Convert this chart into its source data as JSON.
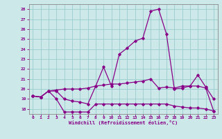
{
  "xlabel": "Windchill (Refroidissement éolien,°C)",
  "background_color": "#cce8e8",
  "line_color": "#880088",
  "grid_color": "#99cccc",
  "xlim": [
    -0.5,
    23.5
  ],
  "ylim": [
    17.5,
    28.5
  ],
  "yticks": [
    18,
    19,
    20,
    21,
    22,
    23,
    24,
    25,
    26,
    27,
    28
  ],
  "xticks": [
    0,
    1,
    2,
    3,
    4,
    5,
    6,
    7,
    8,
    9,
    10,
    11,
    12,
    13,
    14,
    15,
    16,
    17,
    18,
    19,
    20,
    21,
    22,
    23
  ],
  "curve1": [
    19.3,
    19.2,
    19.8,
    19.8,
    19.0,
    18.8,
    18.7,
    18.5,
    20.3,
    22.2,
    20.3,
    23.5,
    24.1,
    24.8,
    25.1,
    27.8,
    28.0,
    25.5,
    20.0,
    20.1,
    20.3,
    21.4,
    20.2,
    19.0
  ],
  "curve2": [
    19.3,
    19.2,
    19.8,
    19.0,
    17.7,
    17.7,
    17.7,
    17.7,
    18.5,
    18.5,
    18.5,
    18.5,
    18.5,
    18.5,
    18.5,
    18.5,
    18.5,
    18.5,
    18.3,
    18.2,
    18.1,
    18.1,
    18.0,
    17.8
  ],
  "curve3": [
    19.3,
    19.2,
    19.8,
    19.9,
    20.0,
    20.0,
    20.0,
    20.1,
    20.3,
    20.4,
    20.5,
    20.5,
    20.6,
    20.7,
    20.8,
    21.0,
    20.1,
    20.2,
    20.1,
    20.3,
    20.3,
    20.3,
    20.1,
    17.8
  ]
}
